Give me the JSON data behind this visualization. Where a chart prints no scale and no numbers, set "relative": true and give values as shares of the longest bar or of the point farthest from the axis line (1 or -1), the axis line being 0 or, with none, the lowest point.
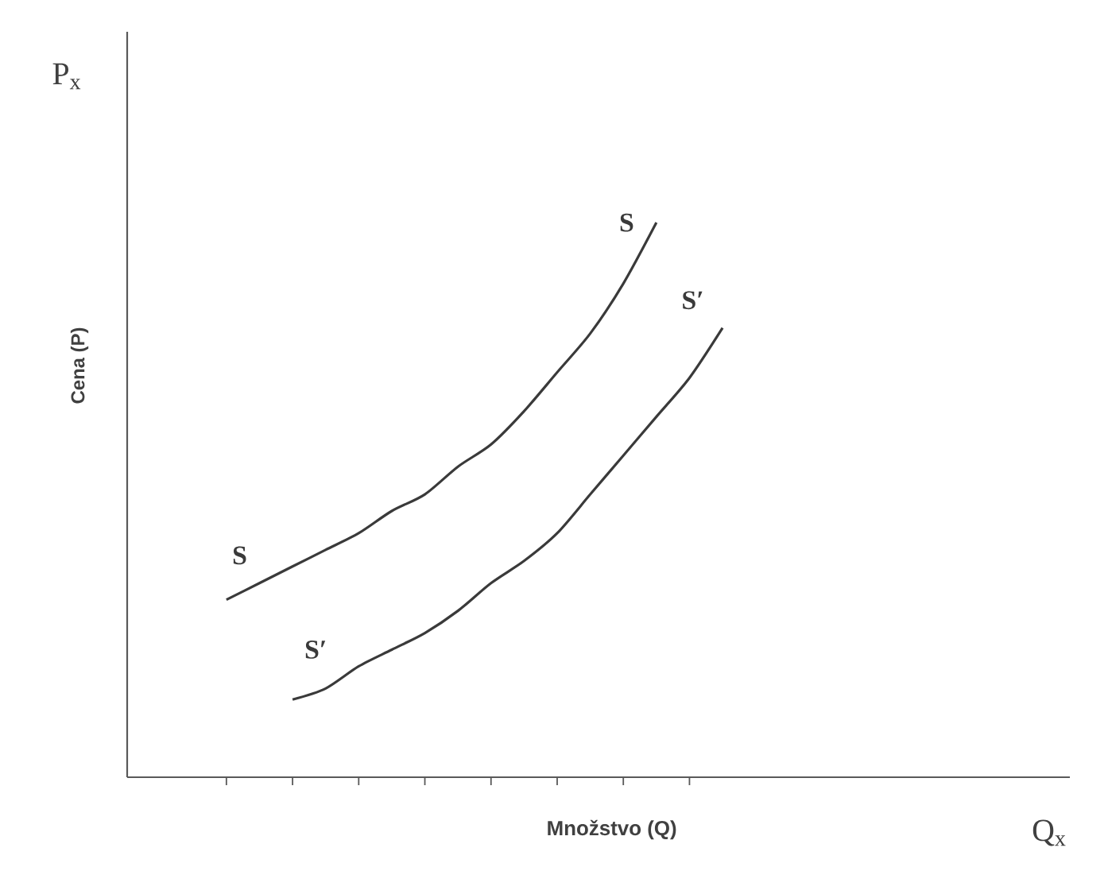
{
  "chart_data": {
    "type": "line",
    "relative": true,
    "xlabel": "Množstvo (Q)",
    "annotations": [
      "P$_{x}$",
      "Q$_{x}$",
      "Cena (P)"
    ],
    "categories": [
      null,
      null,
      null,
      null,
      null,
      null,
      null,
      null,
      null,
      null,
      null,
      null,
      null,
      null,
      null,
      null
    ],
    "series": [
      {
        "name": "S",
        "color": "#3a3a3a",
        "values": [
          0.32,
          0.35,
          0.38,
          0.41,
          0.44,
          0.48,
          0.51,
          0.56,
          0.6,
          0.66,
          0.73,
          0.8,
          0.89,
          1,
          null,
          null
        ]
      },
      {
        "name": "S′",
        "color": "#3a3a3a",
        "values": [
          null,
          null,
          0.14,
          0.16,
          0.2,
          0.23,
          0.26,
          0.3,
          0.35,
          0.39,
          0.44,
          0.51,
          0.58,
          0.65,
          0.72,
          0.81
        ]
      }
    ],
    "grid": false,
    "legend": false,
    "marker": "none",
    "line_style": "solid"
  }
}
